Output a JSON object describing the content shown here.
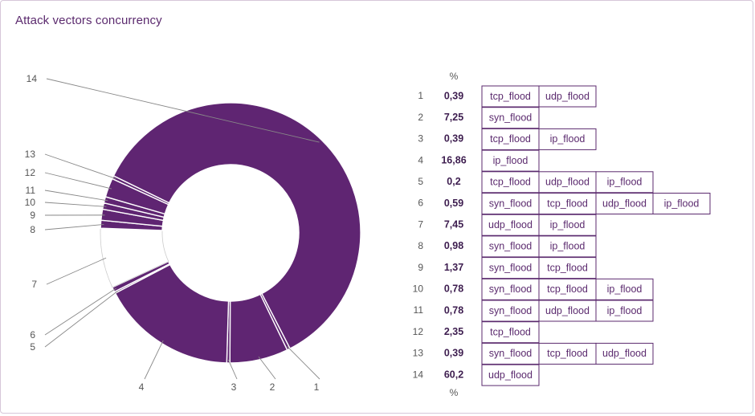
{
  "title": "Attack vectors concurrency",
  "colors": {
    "slice_fill": "#5f2572",
    "slice_white": "#ffffff",
    "slice_stroke": "#ffffff",
    "leader_line": "#888888",
    "box_border": "#5b2a6e",
    "title": "#5b2a6e"
  },
  "chart_data": {
    "type": "donut",
    "title": "Attack vectors concurrency",
    "percent_header_top": "%",
    "percent_header_bottom": "%",
    "slice_order_note_clockwise_from_top": [
      14,
      1,
      2,
      3,
      4,
      5,
      6,
      7,
      8,
      9,
      10,
      11,
      12,
      13
    ],
    "rows": [
      {
        "index": "1",
        "value": "0,39",
        "value_num": 0.39,
        "vectors": [
          "tcp_flood",
          "udp_flood"
        ]
      },
      {
        "index": "2",
        "value": "7,25",
        "value_num": 7.25,
        "vectors": [
          "syn_flood"
        ]
      },
      {
        "index": "3",
        "value": "0,39",
        "value_num": 0.39,
        "vectors": [
          "tcp_flood",
          "ip_flood"
        ]
      },
      {
        "index": "4",
        "value": "16,86",
        "value_num": 16.86,
        "vectors": [
          "ip_flood"
        ]
      },
      {
        "index": "5",
        "value": "0,2",
        "value_num": 0.2,
        "vectors": [
          "tcp_flood",
          "udp_flood",
          "ip_flood"
        ]
      },
      {
        "index": "6",
        "value": "0,59",
        "value_num": 0.59,
        "vectors": [
          "syn_flood",
          "tcp_flood",
          "udp_flood",
          "ip_flood"
        ]
      },
      {
        "index": "7",
        "value": "7,45",
        "value_num": 7.45,
        "vectors": [
          "udp_flood",
          "ip_flood"
        ]
      },
      {
        "index": "8",
        "value": "0,98",
        "value_num": 0.98,
        "vectors": [
          "syn_flood",
          "ip_flood"
        ]
      },
      {
        "index": "9",
        "value": "1,37",
        "value_num": 1.37,
        "vectors": [
          "syn_flood",
          "tcp_flood"
        ]
      },
      {
        "index": "10",
        "value": "0,78",
        "value_num": 0.78,
        "vectors": [
          "syn_flood",
          "tcp_flood",
          "ip_flood"
        ]
      },
      {
        "index": "11",
        "value": "0,78",
        "value_num": 0.78,
        "vectors": [
          "syn_flood",
          "udp_flood",
          "ip_flood"
        ]
      },
      {
        "index": "12",
        "value": "2,35",
        "value_num": 2.35,
        "vectors": [
          "tcp_flood"
        ]
      },
      {
        "index": "13",
        "value": "0,39",
        "value_num": 0.39,
        "vectors": [
          "syn_flood",
          "tcp_flood",
          "udp_flood"
        ]
      },
      {
        "index": "14",
        "value": "60,2",
        "value_num": 60.2,
        "vectors": [
          "udp_flood"
        ]
      }
    ],
    "white_slices": [
      7
    ]
  }
}
